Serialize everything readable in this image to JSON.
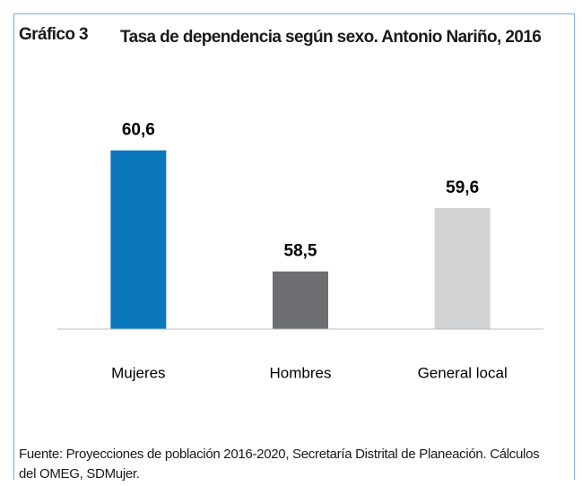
{
  "chart_data": {
    "type": "bar",
    "label": "Gráfico 3",
    "title": "Tasa de dependencia según sexo. Antonio Nariño, 2016",
    "categories": [
      "Mujeres",
      "Hombres",
      "General local"
    ],
    "values": [
      60.6,
      58.5,
      59.6
    ],
    "value_labels": [
      "60,6",
      "58,5",
      "59,6"
    ],
    "colors": [
      "#0b77bd",
      "#6d6e71",
      "#d1d2d4"
    ],
    "ylim": [
      57.5,
      61
    ],
    "source": "Fuente: Proyecciones de población 2016-2020, Secretaría Distrital de Planeación. Cálculos del OMEG, SDMujer."
  }
}
